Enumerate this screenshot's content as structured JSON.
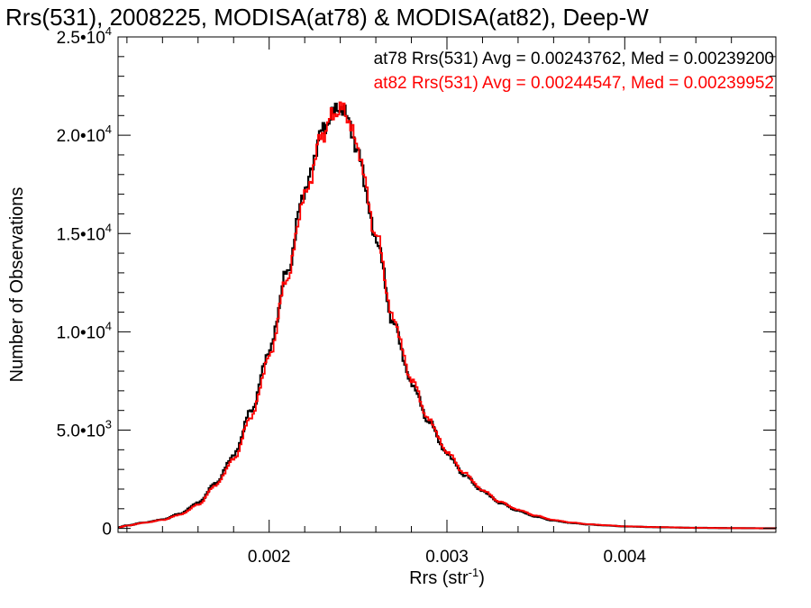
{
  "chart_data": {
    "type": "line",
    "title": "Rrs(531), 2008225, MODISA(at78) & MODISA(at82), Deep-W",
    "xlabel": "Rrs (str",
    "xlabel_sup": "-1",
    "xlabel_close": ")",
    "ylabel": "Number of Observations",
    "xlim": [
      0.00115,
      0.00485
    ],
    "ylim": [
      -200,
      25000
    ],
    "x_ticks": [
      {
        "value": 0.002,
        "label": "0.002"
      },
      {
        "value": 0.003,
        "label": "0.003"
      },
      {
        "value": 0.004,
        "label": "0.004"
      }
    ],
    "y_ticks": [
      {
        "value": 0,
        "mant": "0",
        "exp": ""
      },
      {
        "value": 5000,
        "mant": "5.0•10",
        "exp": "3"
      },
      {
        "value": 10000,
        "mant": "1.0•10",
        "exp": "4"
      },
      {
        "value": 15000,
        "mant": "1.5•10",
        "exp": "4"
      },
      {
        "value": 20000,
        "mant": "2.0•10",
        "exp": "4"
      },
      {
        "value": 25000,
        "mant": "2.5•10",
        "exp": "4"
      }
    ],
    "annotations": [
      {
        "text": "at78 Rrs(531) Avg = 0.00243762, Med = 0.00239200",
        "color": "#000000"
      },
      {
        "text": "at82 Rrs(531) Avg = 0.00244547, Med = 0.00239952",
        "color": "#ff0000"
      }
    ],
    "series": [
      {
        "name": "at78",
        "color": "#000000",
        "x": [
          0.00115,
          0.0012,
          0.0013,
          0.0014,
          0.0015,
          0.0016,
          0.0017,
          0.0018,
          0.0019,
          0.002,
          0.0021,
          0.0022,
          0.0023,
          0.00235,
          0.0024,
          0.00245,
          0.0025,
          0.0026,
          0.0027,
          0.0028,
          0.0029,
          0.003,
          0.0031,
          0.0032,
          0.0033,
          0.0034,
          0.0035,
          0.0036,
          0.0037,
          0.0038,
          0.0039,
          0.004,
          0.0042,
          0.0044,
          0.0046,
          0.00485
        ],
        "y": [
          50,
          150,
          300,
          450,
          750,
          1300,
          2300,
          3700,
          6000,
          9000,
          13000,
          17200,
          20200,
          21000,
          21500,
          20700,
          19000,
          14800,
          10400,
          7400,
          5400,
          3800,
          2700,
          1900,
          1300,
          900,
          600,
          400,
          280,
          200,
          150,
          100,
          60,
          30,
          15,
          5
        ]
      },
      {
        "name": "at82",
        "color": "#ff0000",
        "x": [
          0.00115,
          0.0012,
          0.0013,
          0.0014,
          0.0015,
          0.0016,
          0.0017,
          0.0018,
          0.0019,
          0.002,
          0.0021,
          0.0022,
          0.0023,
          0.00235,
          0.0024,
          0.00245,
          0.0025,
          0.0026,
          0.0027,
          0.0028,
          0.0029,
          0.003,
          0.0031,
          0.0032,
          0.0033,
          0.0034,
          0.0035,
          0.0036,
          0.0037,
          0.0038,
          0.0039,
          0.004,
          0.0042,
          0.0044,
          0.0046,
          0.00485
        ],
        "y": [
          40,
          140,
          290,
          430,
          700,
          1200,
          2200,
          3500,
          5700,
          8700,
          12700,
          16900,
          20000,
          20900,
          21400,
          20800,
          19200,
          15000,
          10600,
          7600,
          5500,
          3900,
          2800,
          1950,
          1350,
          950,
          650,
          430,
          300,
          210,
          160,
          105,
          65,
          32,
          16,
          6
        ]
      }
    ]
  }
}
